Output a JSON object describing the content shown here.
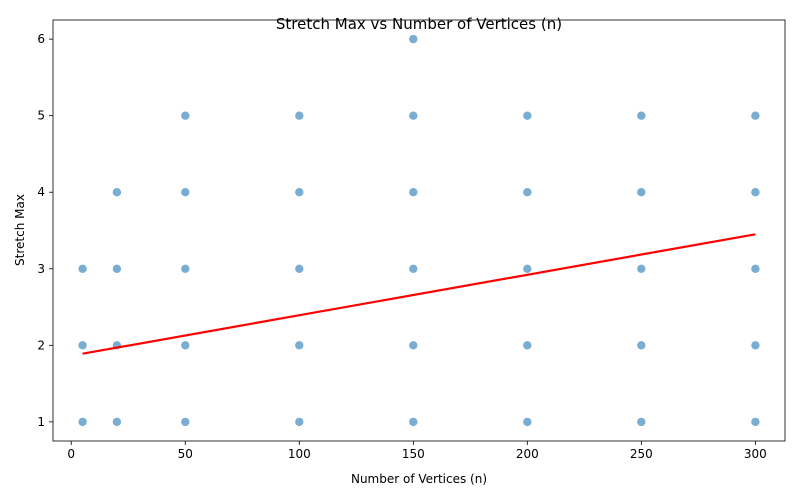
{
  "chart_data": {
    "type": "scatter",
    "title": "Stretch Max vs Number of Vertices (n)",
    "xlabel": "Number of Vertices (n)",
    "ylabel": "Stretch Max",
    "xlim": [
      -8,
      313
    ],
    "ylim": [
      0.75,
      6.25
    ],
    "xticks": [
      0,
      50,
      100,
      150,
      200,
      250,
      300
    ],
    "yticks": [
      1,
      2,
      3,
      4,
      5,
      6
    ],
    "grid": false,
    "colors": {
      "points": "#1f77b4",
      "trend": "#ff0000"
    },
    "points": [
      {
        "x": 5,
        "y": 1
      },
      {
        "x": 5,
        "y": 2
      },
      {
        "x": 5,
        "y": 3
      },
      {
        "x": 20,
        "y": 1
      },
      {
        "x": 20,
        "y": 2
      },
      {
        "x": 20,
        "y": 3
      },
      {
        "x": 20,
        "y": 4
      },
      {
        "x": 50,
        "y": 1
      },
      {
        "x": 50,
        "y": 2
      },
      {
        "x": 50,
        "y": 3
      },
      {
        "x": 50,
        "y": 4
      },
      {
        "x": 50,
        "y": 5
      },
      {
        "x": 100,
        "y": 1
      },
      {
        "x": 100,
        "y": 2
      },
      {
        "x": 100,
        "y": 3
      },
      {
        "x": 100,
        "y": 4
      },
      {
        "x": 100,
        "y": 5
      },
      {
        "x": 150,
        "y": 1
      },
      {
        "x": 150,
        "y": 2
      },
      {
        "x": 150,
        "y": 3
      },
      {
        "x": 150,
        "y": 4
      },
      {
        "x": 150,
        "y": 5
      },
      {
        "x": 150,
        "y": 6
      },
      {
        "x": 200,
        "y": 1
      },
      {
        "x": 200,
        "y": 2
      },
      {
        "x": 200,
        "y": 3
      },
      {
        "x": 200,
        "y": 4
      },
      {
        "x": 200,
        "y": 5
      },
      {
        "x": 250,
        "y": 1
      },
      {
        "x": 250,
        "y": 2
      },
      {
        "x": 250,
        "y": 3
      },
      {
        "x": 250,
        "y": 4
      },
      {
        "x": 250,
        "y": 5
      },
      {
        "x": 300,
        "y": 1
      },
      {
        "x": 300,
        "y": 2
      },
      {
        "x": 300,
        "y": 3
      },
      {
        "x": 300,
        "y": 4
      },
      {
        "x": 300,
        "y": 5
      }
    ],
    "trendline": {
      "x": [
        5,
        300
      ],
      "y": [
        1.89,
        3.45
      ]
    }
  }
}
